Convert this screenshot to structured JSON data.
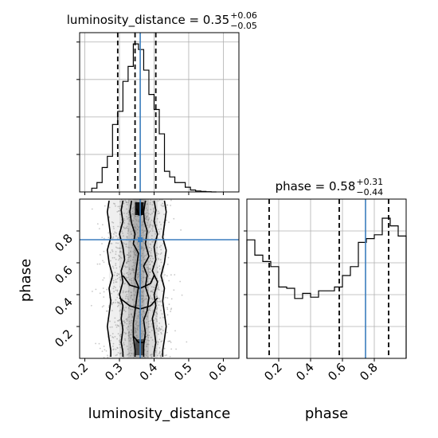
{
  "chart_data": [
    {
      "type": "histogram",
      "panel": "luminosity_distance-marginal",
      "title_text": "luminosity_distance = 0.35",
      "title_plus": "+0.06",
      "title_minus": "−0.05",
      "bin_edges": [
        0.22,
        0.235,
        0.25,
        0.265,
        0.28,
        0.295,
        0.31,
        0.325,
        0.34,
        0.355,
        0.37,
        0.385,
        0.4,
        0.415,
        0.43,
        0.445,
        0.46,
        0.475,
        0.49,
        0.505,
        0.52,
        0.535,
        0.55,
        0.565,
        0.58
      ],
      "counts": [
        0.02,
        0.05,
        0.13,
        0.19,
        0.36,
        0.43,
        0.59,
        0.67,
        0.79,
        0.76,
        0.65,
        0.52,
        0.44,
        0.31,
        0.11,
        0.08,
        0.05,
        0.05,
        0.025,
        0.01,
        0.005,
        0.003,
        0.001,
        0.0
      ],
      "quantiles": [
        0.295,
        0.345,
        0.405
      ],
      "truth": 0.36,
      "xlim": [
        0.185,
        0.645
      ],
      "ylim": [
        0,
        0.85
      ],
      "xticks": [
        0.2,
        0.3,
        0.4,
        0.5,
        0.6
      ],
      "ygrid": [
        0.2,
        0.4,
        0.6,
        0.8
      ]
    },
    {
      "type": "scatter-contour",
      "panel": "luminosity_distance-vs-phase",
      "xlabel": "luminosity_distance",
      "ylabel": "phase",
      "xlim": [
        0.185,
        0.645
      ],
      "ylim": [
        0.0,
        1.0
      ],
      "xticks": [
        0.2,
        0.3,
        0.4,
        0.5,
        0.6
      ],
      "xtick_labels": [
        "0.2",
        "0.3",
        "0.4",
        "0.5",
        "0.6"
      ],
      "yticks": [
        0.2,
        0.4,
        0.6,
        0.8
      ],
      "ytick_labels": [
        "0.2",
        "0.4",
        "0.6",
        "0.8"
      ],
      "truth": {
        "x": 0.36,
        "y": 0.745
      },
      "contours": [
        [
          [
            0.335,
            0.99
          ],
          [
            0.33,
            0.92
          ],
          [
            0.335,
            0.85
          ],
          [
            0.345,
            0.78
          ],
          [
            0.34,
            0.72
          ],
          [
            0.355,
            0.66
          ],
          [
            0.35,
            0.58
          ],
          [
            0.345,
            0.5
          ],
          [
            0.355,
            0.45
          ],
          [
            0.35,
            0.38
          ],
          [
            0.345,
            0.3
          ],
          [
            0.34,
            0.22
          ],
          [
            0.34,
            0.14
          ],
          [
            0.345,
            0.05
          ],
          [
            0.345,
            0.01
          ]
        ],
        [
          [
            0.375,
            0.99
          ],
          [
            0.37,
            0.92
          ],
          [
            0.372,
            0.86
          ],
          [
            0.38,
            0.8
          ],
          [
            0.375,
            0.72
          ],
          [
            0.385,
            0.64
          ],
          [
            0.37,
            0.58
          ],
          [
            0.38,
            0.52
          ],
          [
            0.375,
            0.45
          ],
          [
            0.385,
            0.38
          ],
          [
            0.38,
            0.3
          ],
          [
            0.37,
            0.24
          ],
          [
            0.375,
            0.16
          ],
          [
            0.37,
            0.08
          ],
          [
            0.37,
            0.01
          ]
        ],
        [
          [
            0.31,
            0.99
          ],
          [
            0.305,
            0.93
          ],
          [
            0.31,
            0.86
          ],
          [
            0.3,
            0.78
          ],
          [
            0.31,
            0.7
          ],
          [
            0.315,
            0.62
          ],
          [
            0.305,
            0.55
          ],
          [
            0.31,
            0.48
          ],
          [
            0.3,
            0.4
          ],
          [
            0.31,
            0.33
          ],
          [
            0.305,
            0.25
          ],
          [
            0.31,
            0.18
          ],
          [
            0.305,
            0.1
          ],
          [
            0.31,
            0.04
          ],
          [
            0.31,
            0.01
          ]
        ],
        [
          [
            0.4,
            0.99
          ],
          [
            0.405,
            0.93
          ],
          [
            0.4,
            0.86
          ],
          [
            0.41,
            0.78
          ],
          [
            0.4,
            0.7
          ],
          [
            0.405,
            0.62
          ],
          [
            0.395,
            0.55
          ],
          [
            0.41,
            0.48
          ],
          [
            0.4,
            0.4
          ],
          [
            0.405,
            0.33
          ],
          [
            0.395,
            0.25
          ],
          [
            0.4,
            0.18
          ],
          [
            0.405,
            0.1
          ],
          [
            0.4,
            0.04
          ],
          [
            0.4,
            0.01
          ]
        ],
        [
          [
            0.27,
            0.99
          ],
          [
            0.265,
            0.92
          ],
          [
            0.27,
            0.84
          ],
          [
            0.275,
            0.76
          ],
          [
            0.265,
            0.68
          ],
          [
            0.27,
            0.6
          ],
          [
            0.28,
            0.52
          ],
          [
            0.27,
            0.44
          ],
          [
            0.275,
            0.36
          ],
          [
            0.27,
            0.28
          ],
          [
            0.265,
            0.2
          ],
          [
            0.27,
            0.12
          ],
          [
            0.275,
            0.05
          ],
          [
            0.275,
            0.01
          ]
        ],
        [
          [
            0.43,
            0.99
          ],
          [
            0.435,
            0.92
          ],
          [
            0.43,
            0.84
          ],
          [
            0.425,
            0.76
          ],
          [
            0.435,
            0.68
          ],
          [
            0.43,
            0.6
          ],
          [
            0.42,
            0.52
          ],
          [
            0.43,
            0.44
          ],
          [
            0.425,
            0.36
          ],
          [
            0.43,
            0.28
          ],
          [
            0.435,
            0.2
          ],
          [
            0.43,
            0.12
          ],
          [
            0.425,
            0.05
          ],
          [
            0.425,
            0.01
          ]
        ],
        [
          [
            0.31,
            0.52
          ],
          [
            0.33,
            0.46
          ],
          [
            0.36,
            0.44
          ],
          [
            0.39,
            0.47
          ],
          [
            0.4,
            0.52
          ]
        ],
        [
          [
            0.3,
            0.38
          ],
          [
            0.33,
            0.33
          ],
          [
            0.36,
            0.31
          ],
          [
            0.39,
            0.33
          ],
          [
            0.41,
            0.38
          ]
        ],
        [
          [
            0.34,
            0.14
          ],
          [
            0.355,
            0.1
          ],
          [
            0.37,
            0.1
          ],
          [
            0.375,
            0.14
          ]
        ],
        [
          [
            0.35,
            0.94
          ],
          [
            0.356,
            0.9
          ],
          [
            0.362,
            0.9
          ],
          [
            0.366,
            0.94
          ]
        ]
      ]
    },
    {
      "type": "histogram",
      "panel": "phase-marginal",
      "title_text": "phase = 0.58",
      "title_plus": "+0.31",
      "title_minus": "−0.44",
      "xlabel": "phase",
      "bin_edges": [
        0.0,
        0.05,
        0.1,
        0.15,
        0.2,
        0.25,
        0.3,
        0.35,
        0.4,
        0.45,
        0.5,
        0.55,
        0.6,
        0.65,
        0.7,
        0.75,
        0.8,
        0.85,
        0.9,
        0.95,
        1.0
      ],
      "counts": [
        0.93,
        0.81,
        0.76,
        0.72,
        0.56,
        0.55,
        0.47,
        0.51,
        0.48,
        0.53,
        0.53,
        0.56,
        0.65,
        0.72,
        0.91,
        0.94,
        0.97,
        1.1,
        1.04,
        0.96
      ],
      "quantiles": [
        0.14,
        0.58,
        0.89
      ],
      "truth": 0.745,
      "xlim": [
        0.0,
        1.0
      ],
      "ylim": [
        0,
        1.25
      ],
      "xticks": [
        0.2,
        0.4,
        0.6,
        0.8
      ],
      "xtick_labels": [
        "0.2",
        "0.4",
        "0.6",
        "0.8"
      ],
      "ygrid": [
        0.25,
        0.5,
        0.75,
        1.0
      ]
    }
  ]
}
